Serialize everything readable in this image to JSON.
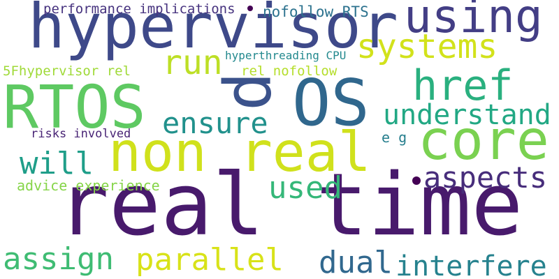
{
  "words": [
    {
      "text": "real time",
      "color": "#481a6c"
    },
    {
      "text": "hypervisor",
      "color": "#3e4989"
    },
    {
      "text": "non real",
      "color": "#d0e11c"
    },
    {
      "text": "OS",
      "color": "#30678d"
    },
    {
      "text": "core",
      "color": "#7ad151"
    },
    {
      "text": "RTOS",
      "color": "#5ec962"
    },
    {
      "text": "p",
      "color": "#3b528b"
    },
    {
      "text": "using",
      "color": "#433e85"
    },
    {
      "text": "href",
      "color": "#2ab07f"
    },
    {
      "text": "systems",
      "color": "#d2e21b"
    },
    {
      "text": "understand",
      "color": "#22a884"
    },
    {
      "text": "run",
      "color": "#bddf26"
    },
    {
      "text": "ensure",
      "color": "#21918c"
    },
    {
      "text": "aspects",
      "color": "#472d7b"
    },
    {
      "text": "will",
      "color": "#1f9e89"
    },
    {
      "text": "used",
      "color": "#35b779"
    },
    {
      "text": "assign",
      "color": "#3fbc73"
    },
    {
      "text": "parallel",
      "color": "#d8e219"
    },
    {
      "text": "dual",
      "color": "#31688e"
    },
    {
      "text": "interfere",
      "color": "#26828e"
    },
    {
      "text": "nofollow RTS",
      "color": "#2c728e"
    },
    {
      "text": "performance implications",
      "color": "#46327e"
    },
    {
      "text": "hyperthreading CPU",
      "color": "#23898e"
    },
    {
      "text": "5Fhypervisor rel",
      "color": "#a0da39"
    },
    {
      "text": "rel nofollow",
      "color": "#b5de2b"
    },
    {
      "text": "risks involved",
      "color": "#482475"
    },
    {
      "text": "advice experience",
      "color": "#86d549"
    },
    {
      "text": "e g",
      "color": "#277f8e"
    }
  ],
  "dots": [
    {
      "name": "dot-near-performance",
      "color": "#440154"
    },
    {
      "name": "dot-near-aspects",
      "color": "#440154"
    }
  ]
}
